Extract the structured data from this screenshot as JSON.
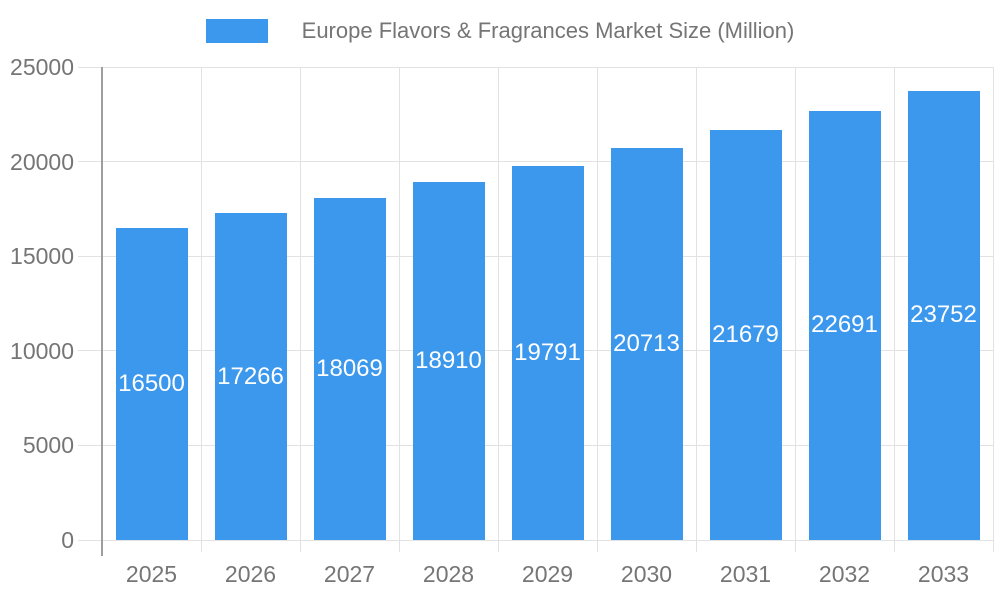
{
  "chart_data": {
    "type": "bar",
    "title": "Europe Flavors & Fragrances Market Size (Million)",
    "categories": [
      "2025",
      "2026",
      "2027",
      "2028",
      "2029",
      "2030",
      "2031",
      "2032",
      "2033"
    ],
    "values": [
      16500,
      17266,
      18069,
      18910,
      19791,
      20713,
      21679,
      22691,
      23752
    ],
    "series_name": "Europe Flavors & Fragrances Market Size (Million)",
    "xlabel": "",
    "ylabel": "",
    "ylim": [
      0,
      25000
    ],
    "yticks": [
      0,
      5000,
      10000,
      15000,
      20000,
      25000
    ],
    "grid": true,
    "legend_position": "top",
    "value_labels": "inside-bar-centered"
  },
  "colors": {
    "bar": "#3C98EC",
    "bar_label": "#FFFFFF",
    "grid": "#E2E2E2",
    "axis_line": "#9E9E9E",
    "tick_text": "#757575",
    "title_text": "#757575",
    "background": "#FFFFFF"
  }
}
